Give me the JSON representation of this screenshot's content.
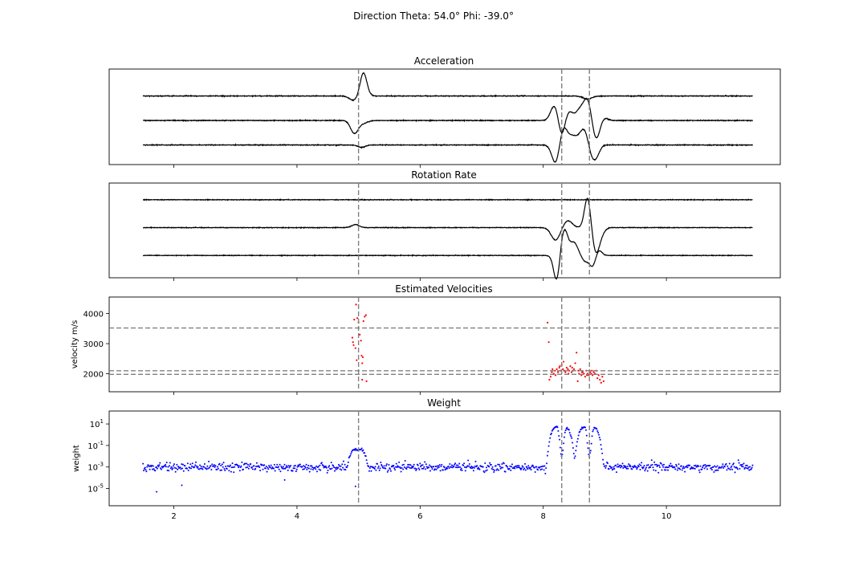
{
  "figure_title": "Direction Theta: 54.0° Phi: -39.0°",
  "colors": {
    "trace": "#000000",
    "velocity_points": "#ff0000",
    "weight_points": "#0000ff",
    "marker_lines": "#808080",
    "frame": "#000000",
    "background": "#ffffff"
  },
  "chart_data": [
    {
      "type": "line",
      "title": "Acceleration",
      "xlim": [
        0.95,
        11.85
      ],
      "x_range": [
        1.5,
        11.4
      ],
      "x_ticks": [
        2,
        4,
        6,
        8,
        10
      ],
      "x_tick_labels_visible": false,
      "y_ticks_visible": false,
      "vertical_markers": [
        5.0,
        8.3,
        8.75
      ],
      "ylim": [
        -3.6,
        4.2
      ],
      "series": [
        {
          "offset": 2.0,
          "noise": 0.04,
          "events": [
            {
              "t": 4.92,
              "a": -0.35,
              "w": 0.07
            },
            {
              "t": 5.08,
              "a": 1.9,
              "w": 0.055
            },
            {
              "t": 8.72,
              "a": -0.25,
              "w": 0.07
            }
          ]
        },
        {
          "offset": 0.0,
          "noise": 0.04,
          "events": [
            {
              "t": 4.93,
              "a": -1.0,
              "w": 0.06
            },
            {
              "t": 5.06,
              "a": -0.25,
              "w": 0.08
            },
            {
              "t": 8.18,
              "a": 1.2,
              "w": 0.06
            },
            {
              "t": 8.3,
              "a": -1.25,
              "w": 0.05
            },
            {
              "t": 8.42,
              "a": 0.7,
              "w": 0.06
            },
            {
              "t": 8.6,
              "a": 0.9,
              "w": 0.07
            },
            {
              "t": 8.72,
              "a": 1.6,
              "w": 0.06
            },
            {
              "t": 8.86,
              "a": -1.55,
              "w": 0.06
            },
            {
              "t": 8.98,
              "a": 0.25,
              "w": 0.06
            }
          ]
        },
        {
          "offset": -2.0,
          "noise": 0.04,
          "events": [
            {
              "t": 5.05,
              "a": -0.2,
              "w": 0.06
            },
            {
              "t": 8.2,
              "a": -1.5,
              "w": 0.06
            },
            {
              "t": 8.33,
              "a": 1.4,
              "w": 0.06
            },
            {
              "t": 8.48,
              "a": 0.7,
              "w": 0.07
            },
            {
              "t": 8.66,
              "a": 1.3,
              "w": 0.07
            },
            {
              "t": 8.8,
              "a": -1.1,
              "w": 0.06
            },
            {
              "t": 8.88,
              "a": -0.5,
              "w": 0.05
            }
          ]
        }
      ]
    },
    {
      "type": "line",
      "title": "Rotation Rate",
      "xlim": [
        0.95,
        11.85
      ],
      "x_range": [
        1.5,
        11.4
      ],
      "x_ticks": [
        2,
        4,
        6,
        8,
        10
      ],
      "x_tick_labels_visible": false,
      "y_ticks_visible": false,
      "vertical_markers": [
        5.0,
        8.3,
        8.75
      ],
      "ylim": [
        -3.6,
        3.2
      ],
      "series": [
        {
          "offset": 2.0,
          "noise": 0.03,
          "events": []
        },
        {
          "offset": 0.0,
          "noise": 0.03,
          "events": [
            {
              "t": 4.95,
              "a": 0.22,
              "w": 0.06
            },
            {
              "t": 8.2,
              "a": -0.9,
              "w": 0.07
            },
            {
              "t": 8.4,
              "a": 0.5,
              "w": 0.07
            },
            {
              "t": 8.72,
              "a": 2.2,
              "w": 0.05
            },
            {
              "t": 8.86,
              "a": -1.8,
              "w": 0.06
            },
            {
              "t": 8.97,
              "a": -0.2,
              "w": 0.05
            }
          ]
        },
        {
          "offset": -2.0,
          "noise": 0.03,
          "events": [
            {
              "t": 8.22,
              "a": -1.9,
              "w": 0.05
            },
            {
              "t": 8.34,
              "a": 1.9,
              "w": 0.06
            },
            {
              "t": 8.5,
              "a": 0.9,
              "w": 0.06
            },
            {
              "t": 8.68,
              "a": -0.4,
              "w": 0.05
            },
            {
              "t": 8.8,
              "a": -0.8,
              "w": 0.05
            },
            {
              "t": 8.9,
              "a": 0.4,
              "w": 0.05
            }
          ]
        }
      ]
    },
    {
      "type": "scatter",
      "title": "Estimated Velocities",
      "ylabel": "velocity m/s",
      "xlim": [
        0.95,
        11.85
      ],
      "ylim": [
        1400,
        4550
      ],
      "x_ticks": [
        2,
        4,
        6,
        8,
        10
      ],
      "x_tick_labels_visible": false,
      "y_ticks": [
        2000,
        3000,
        4000
      ],
      "y_tick_labels": [
        "2000",
        "3000",
        "4000"
      ],
      "vertical_markers": [
        5.0,
        8.3,
        8.75
      ],
      "horizontal_markers": [
        3520,
        2100,
        1980
      ],
      "points": [
        [
          4.9,
          3200
        ],
        [
          4.92,
          2950
        ],
        [
          4.93,
          3800
        ],
        [
          4.95,
          2850
        ],
        [
          4.96,
          4300
        ],
        [
          4.97,
          2450
        ],
        [
          4.98,
          3850
        ],
        [
          5.0,
          3700
        ],
        [
          5.02,
          3300
        ],
        [
          5.04,
          3100
        ],
        [
          5.05,
          2600
        ],
        [
          5.06,
          2350
        ],
        [
          5.07,
          2550
        ],
        [
          5.08,
          3750
        ],
        [
          5.1,
          3900
        ],
        [
          5.12,
          3950
        ],
        [
          5.13,
          1750
        ],
        [
          5.06,
          1800
        ],
        [
          4.91,
          3050
        ],
        [
          8.07,
          3700
        ],
        [
          8.09,
          3050
        ],
        [
          8.1,
          1800
        ],
        [
          8.12,
          1900
        ],
        [
          8.14,
          2050
        ],
        [
          8.15,
          2150
        ],
        [
          8.17,
          2000
        ],
        [
          8.19,
          2100
        ],
        [
          8.2,
          1950
        ],
        [
          8.22,
          2150
        ],
        [
          8.24,
          2050
        ],
        [
          8.26,
          2200
        ],
        [
          8.28,
          2100
        ],
        [
          8.3,
          2300
        ],
        [
          8.32,
          2150
        ],
        [
          8.34,
          2100
        ],
        [
          8.36,
          2050
        ],
        [
          8.38,
          2200
        ],
        [
          8.4,
          2150
        ],
        [
          8.42,
          2100
        ],
        [
          8.44,
          2250
        ],
        [
          8.46,
          2050
        ],
        [
          8.48,
          2100
        ],
        [
          8.5,
          2150
        ],
        [
          8.52,
          2350
        ],
        [
          8.54,
          2700
        ],
        [
          8.56,
          1750
        ],
        [
          8.58,
          2000
        ],
        [
          8.6,
          2150
        ],
        [
          8.62,
          1950
        ],
        [
          8.64,
          2050
        ],
        [
          8.66,
          2000
        ],
        [
          8.68,
          1900
        ],
        [
          8.7,
          2100
        ],
        [
          8.72,
          2000
        ],
        [
          8.74,
          1950
        ],
        [
          8.76,
          2050
        ],
        [
          8.78,
          2000
        ],
        [
          8.8,
          1950
        ],
        [
          8.82,
          2050
        ],
        [
          8.84,
          2000
        ],
        [
          8.86,
          2100
        ],
        [
          8.88,
          1850
        ],
        [
          8.9,
          1950
        ],
        [
          8.92,
          1800
        ],
        [
          8.94,
          1700
        ],
        [
          8.96,
          1900
        ],
        [
          8.98,
          1750
        ],
        [
          8.27,
          2250
        ],
        [
          8.33,
          2400
        ],
        [
          8.41,
          2000
        ],
        [
          8.47,
          2200
        ],
        [
          8.57,
          2100
        ],
        [
          8.63,
          2050
        ],
        [
          8.71,
          1950
        ],
        [
          8.79,
          2100
        ]
      ]
    },
    {
      "type": "scatter",
      "title": "Weight",
      "ylabel": "weight",
      "y_scale": "log",
      "xlim": [
        0.95,
        11.85
      ],
      "ylim_log10": [
        -6.6,
        2.2
      ],
      "x_ticks": [
        2,
        4,
        6,
        8,
        10
      ],
      "x_tick_labels": [
        "2",
        "4",
        "6",
        "8",
        "10"
      ],
      "y_ticks_log10": [
        1,
        -1,
        -3,
        -5
      ],
      "y_tick_labels": [
        "10^1",
        "10^-1",
        "10^-3",
        "10^-5"
      ],
      "vertical_markers": [
        5.0,
        8.3,
        8.75
      ],
      "sampling": {
        "x_start": 1.5,
        "x_end": 11.4,
        "step": 0.011,
        "baseline_log10": -3.0,
        "spread_log10": 0.9
      },
      "bumps": [
        {
          "t_start": 4.82,
          "t_end": 5.15,
          "peak_log10": -1.4
        },
        {
          "t_start": 8.05,
          "t_end": 8.52,
          "peak_log10": 0.8,
          "dip_at": 8.3
        },
        {
          "t_start": 8.5,
          "t_end": 8.98,
          "peak_log10": 0.8,
          "dip_at": 8.75
        }
      ],
      "outlier_points_log10": [
        [
          1.72,
          -5.3
        ],
        [
          2.13,
          -4.7
        ],
        [
          4.95,
          -4.8
        ],
        [
          3.8,
          -4.2
        ]
      ]
    }
  ]
}
